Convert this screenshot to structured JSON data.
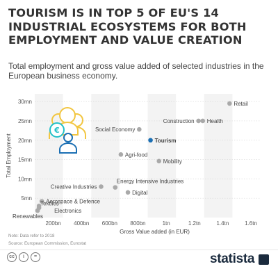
{
  "title": "TOURISM IS IN TOP 5 OF EU'S 14 INDUSTRIAL ECOSYSTEMS FOR BOTH EMPLOYMENT AND VALUE CREATION",
  "subtitle": "Total employment and gross value added of selected industries in the European business economy.",
  "note": "Note: Data refer to 2018",
  "source": "Source: European Commission, Eurostat",
  "brand": "statista",
  "license_icons": [
    "cc-icon",
    "attribution-icon",
    "noderivs-icon"
  ],
  "colors": {
    "point": "#a9a9a9",
    "highlight": "#1b6fb3",
    "band": "#f3f3f3",
    "icon_yellow": "#f2c641",
    "icon_blue": "#1b6fb3",
    "icon_teal": "#22c0c9"
  },
  "chart_data": {
    "type": "scatter",
    "xlabel": "Gross Value added (in EUR)",
    "ylabel": "Total Employment",
    "xlim": [
      0,
      1.6
    ],
    "ylim": [
      0,
      32
    ],
    "x_ticks": [
      {
        "v": 0.2,
        "label": "200bn"
      },
      {
        "v": 0.4,
        "label": "400bn"
      },
      {
        "v": 0.6,
        "label": "600bn"
      },
      {
        "v": 0.8,
        "label": "800bn"
      },
      {
        "v": 1.0,
        "label": "1tn"
      },
      {
        "v": 1.2,
        "label": "1.2tn"
      },
      {
        "v": 1.4,
        "label": "1.4tn"
      },
      {
        "v": 1.6,
        "label": "1.6tn"
      }
    ],
    "y_ticks": [
      {
        "v": 5,
        "label": "5mn"
      },
      {
        "v": 10,
        "label": "10mn"
      },
      {
        "v": 15,
        "label": "15mn"
      },
      {
        "v": 20,
        "label": "20mn"
      },
      {
        "v": 25,
        "label": "25mn"
      },
      {
        "v": 30,
        "label": "30mn"
      }
    ],
    "points": [
      {
        "label": "Retail",
        "x": 1.38,
        "y": 29.5,
        "pos": "right",
        "highlight": false
      },
      {
        "label": "Construction",
        "x": 1.16,
        "y": 25.0,
        "pos": "left",
        "highlight": false
      },
      {
        "label": "Health",
        "x": 1.19,
        "y": 25.0,
        "pos": "right",
        "highlight": false
      },
      {
        "label": "Social Economy",
        "x": 0.74,
        "y": 22.8,
        "pos": "left",
        "highlight": false
      },
      {
        "label": "Tourism",
        "x": 0.82,
        "y": 20.0,
        "pos": "right",
        "highlight": true
      },
      {
        "label": "Agri-food",
        "x": 0.61,
        "y": 16.3,
        "pos": "right",
        "highlight": false
      },
      {
        "label": "Mobility",
        "x": 0.88,
        "y": 14.6,
        "pos": "right",
        "highlight": false
      },
      {
        "label": "Energy Intensive Industries",
        "x": 0.57,
        "y": 7.8,
        "pos": "above-right",
        "highlight": false
      },
      {
        "label": "Creative Industries",
        "x": 0.47,
        "y": 8.0,
        "pos": "left",
        "highlight": false
      },
      {
        "label": "Digital",
        "x": 0.66,
        "y": 6.5,
        "pos": "right",
        "highlight": false
      },
      {
        "label": "Aerospace & Defence",
        "x": 0.05,
        "y": 4.2,
        "pos": "right",
        "highlight": false
      },
      {
        "label": "Textiles",
        "x": 0.03,
        "y": 3.0,
        "pos": "right-up",
        "highlight": false
      },
      {
        "label": "Electronics",
        "x": 0.03,
        "y": 2.5,
        "pos": "right-down",
        "highlight": false
      },
      {
        "label": "Renewables",
        "x": 0.02,
        "y": 1.8,
        "pos": "left-down",
        "highlight": false
      }
    ]
  }
}
